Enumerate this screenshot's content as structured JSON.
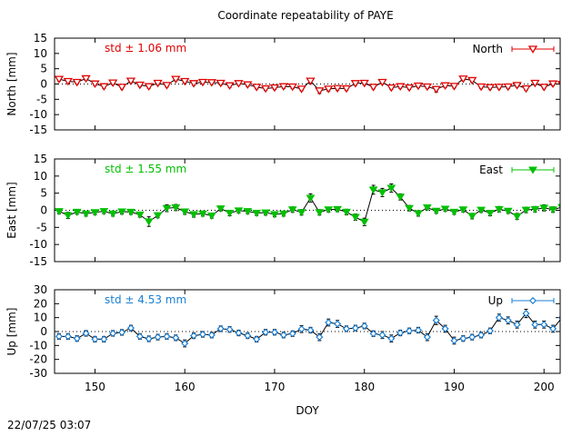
{
  "title": "Coordinate repeatability of PAYE",
  "timestamp": "22/07/25 03:07",
  "colors": {
    "north": "#e00000",
    "east": "#00c000",
    "up": "#1a7fd4",
    "errbar": "#000000"
  },
  "chart_data": [
    {
      "type": "line",
      "panel": "north",
      "ylabel": "North [mm]",
      "ylim": [
        -15,
        15
      ],
      "yticks": [
        "15",
        "10",
        "5",
        "0",
        "-5",
        "-10",
        "-15"
      ],
      "yticks_values": [
        15,
        10,
        5,
        0,
        -5,
        -10,
        -15
      ],
      "xlim": [
        145.5,
        201.8
      ],
      "std_label": "std ± 1.06 mm",
      "legend": "North",
      "legend_position": "top-right",
      "marker": "triangle-down-open",
      "series": [
        {
          "name": "North",
          "x": [
            146,
            147,
            148,
            149,
            150,
            151,
            152,
            153,
            154,
            155,
            156,
            157,
            158,
            159,
            160,
            161,
            162,
            163,
            164,
            165,
            166,
            167,
            168,
            169,
            170,
            171,
            172,
            173,
            174,
            175,
            176,
            177,
            178,
            179,
            180,
            181,
            182,
            183,
            184,
            185,
            186,
            187,
            188,
            189,
            190,
            191,
            192,
            193,
            194,
            195,
            196,
            197,
            198,
            199,
            200,
            201,
            202
          ],
          "values": [
            1.6,
            0.9,
            0.6,
            1.8,
            0.1,
            -0.8,
            0.4,
            -1.0,
            1.0,
            -0.3,
            -0.8,
            0.3,
            -0.4,
            1.6,
            0.9,
            0.2,
            0.6,
            0.5,
            0.3,
            -0.5,
            0.2,
            -0.2,
            -1.0,
            -1.5,
            -1.2,
            -0.8,
            -0.9,
            -1.6,
            1.0,
            -2.2,
            -1.6,
            -1.4,
            -1.5,
            0.2,
            0.3,
            -1.0,
            0.6,
            -1.2,
            -0.8,
            -1.2,
            -0.6,
            -0.9,
            -1.7,
            -0.5,
            -0.7,
            1.7,
            1.2,
            -0.9,
            -1.1,
            -1.0,
            -0.9,
            -0.4,
            -1.5,
            0.3,
            -1.0,
            0.1,
            -0.1
          ],
          "errors": [
            0.6,
            0.6,
            0.6,
            0.6,
            0.6,
            0.6,
            0.6,
            0.6,
            0.6,
            0.6,
            0.6,
            0.6,
            0.6,
            0.6,
            0.6,
            0.6,
            0.6,
            0.6,
            0.6,
            0.6,
            0.6,
            0.6,
            0.6,
            0.6,
            0.6,
            0.6,
            0.6,
            0.6,
            0.9,
            0.9,
            0.7,
            0.6,
            0.6,
            0.6,
            0.6,
            0.6,
            0.6,
            0.6,
            0.6,
            0.6,
            0.6,
            0.6,
            0.9,
            0.6,
            0.6,
            0.6,
            0.6,
            0.6,
            0.6,
            0.6,
            0.6,
            0.6,
            0.6,
            0.6,
            0.6,
            0.6,
            0.6
          ]
        }
      ]
    },
    {
      "type": "line",
      "panel": "east",
      "ylabel": "East [mm]",
      "ylim": [
        -15,
        15
      ],
      "yticks": [
        "15",
        "10",
        "5",
        "0",
        "-5",
        "-10",
        "-15"
      ],
      "yticks_values": [
        15,
        10,
        5,
        0,
        -5,
        -10,
        -15
      ],
      "xlim": [
        145.5,
        201.8
      ],
      "std_label": "std ± 1.55 mm",
      "legend": "East",
      "legend_position": "top-right",
      "marker": "triangle-down-filled",
      "series": [
        {
          "name": "East",
          "x": [
            146,
            147,
            148,
            149,
            150,
            151,
            152,
            153,
            154,
            155,
            156,
            157,
            158,
            159,
            160,
            161,
            162,
            163,
            164,
            165,
            166,
            167,
            168,
            169,
            170,
            171,
            172,
            173,
            174,
            175,
            176,
            177,
            178,
            179,
            180,
            181,
            182,
            183,
            184,
            185,
            186,
            187,
            188,
            189,
            190,
            191,
            192,
            193,
            194,
            195,
            196,
            197,
            198,
            199,
            200,
            201,
            202
          ],
          "values": [
            -0.3,
            -1.5,
            -0.5,
            -1.0,
            -0.6,
            -0.3,
            -1.0,
            -0.4,
            -0.5,
            -1.3,
            -3.3,
            -1.5,
            0.6,
            0.8,
            -0.4,
            -1.2,
            -1.0,
            -1.6,
            0.5,
            -0.8,
            -0.1,
            -0.3,
            -0.8,
            -0.7,
            -1.2,
            -1.0,
            0.2,
            -0.6,
            3.6,
            -0.6,
            0.2,
            0.3,
            -0.5,
            -2.0,
            -3.4,
            6.0,
            5.2,
            6.5,
            3.9,
            0.6,
            -0.9,
            0.8,
            -0.2,
            0.4,
            -0.5,
            0.2,
            -1.7,
            0.1,
            -0.8,
            0.3,
            -0.2,
            -1.8,
            0.1,
            0.3,
            0.7,
            0.2,
            0.9
          ],
          "errors": [
            0.7,
            0.9,
            0.7,
            0.7,
            0.7,
            0.7,
            0.7,
            0.7,
            0.7,
            0.7,
            1.4,
            0.7,
            1.0,
            0.9,
            0.8,
            0.8,
            0.7,
            0.7,
            0.7,
            0.8,
            0.7,
            0.7,
            0.7,
            0.7,
            0.7,
            0.7,
            0.8,
            0.8,
            1.2,
            0.8,
            0.7,
            0.7,
            0.8,
            0.9,
            1.1,
            1.3,
            1.2,
            1.2,
            0.9,
            0.8,
            0.8,
            0.7,
            0.7,
            0.7,
            0.7,
            0.7,
            0.8,
            0.7,
            0.8,
            0.8,
            0.7,
            0.9,
            0.8,
            0.8,
            0.9,
            0.8,
            0.8
          ]
        }
      ]
    },
    {
      "type": "line",
      "panel": "up",
      "ylabel": "Up [mm]",
      "ylim": [
        -30,
        30
      ],
      "yticks": [
        "30",
        "20",
        "10",
        "0",
        "-10",
        "-20",
        "-30"
      ],
      "yticks_values": [
        30,
        20,
        10,
        0,
        -10,
        -20,
        -30
      ],
      "xlim": [
        145.5,
        201.8
      ],
      "xticks": [
        "150",
        "160",
        "170",
        "180",
        "190",
        "200"
      ],
      "xticks_values": [
        150,
        160,
        170,
        180,
        190,
        200
      ],
      "xlabel": "DOY",
      "std_label": "std ± 4.53 mm",
      "legend": "Up",
      "legend_position": "top-right",
      "marker": "diamond-open",
      "series": [
        {
          "name": "Up",
          "x": [
            146,
            147,
            148,
            149,
            150,
            151,
            152,
            153,
            154,
            155,
            156,
            157,
            158,
            159,
            160,
            161,
            162,
            163,
            164,
            165,
            166,
            167,
            168,
            169,
            170,
            171,
            172,
            173,
            174,
            175,
            176,
            177,
            178,
            179,
            180,
            181,
            182,
            183,
            184,
            185,
            186,
            187,
            188,
            189,
            190,
            191,
            192,
            193,
            194,
            195,
            196,
            197,
            198,
            199,
            200,
            201,
            202
          ],
          "values": [
            -3.5,
            -3.5,
            -5.0,
            -1.3,
            -5.5,
            -5.5,
            -1.3,
            -0.6,
            2.5,
            -3.5,
            -5.2,
            -4.0,
            -3.5,
            -4.5,
            -8.5,
            -3.0,
            -2.0,
            -2.5,
            2.0,
            1.5,
            -1.0,
            -3.0,
            -5.5,
            -0.5,
            -0.5,
            -2.5,
            -1.5,
            1.8,
            1.0,
            -4.0,
            6.5,
            5.5,
            2.0,
            2.5,
            4.0,
            -1.5,
            -2.5,
            -5.0,
            -1.0,
            0.5,
            1.0,
            -4.0,
            8.0,
            2.0,
            -6.5,
            -5.0,
            -4.0,
            -2.5,
            0.5,
            10.0,
            8.0,
            5.0,
            13.0,
            5.0,
            5.0,
            2.0,
            10.0
          ],
          "errors": [
            2,
            2,
            2,
            2,
            2,
            2,
            2,
            2,
            2,
            2,
            2,
            2,
            2,
            2,
            2.5,
            2,
            2,
            2,
            2,
            2,
            2,
            2,
            2,
            2,
            2,
            2,
            2,
            2.5,
            2,
            2.5,
            2.5,
            2.5,
            2,
            2,
            2,
            2,
            2.5,
            2.5,
            2,
            2,
            2,
            2.5,
            3,
            2.5,
            2.5,
            2,
            2,
            2,
            2,
            2.5,
            2.5,
            2.5,
            3,
            2.5,
            2.5,
            2.5,
            2.5
          ]
        }
      ]
    }
  ]
}
